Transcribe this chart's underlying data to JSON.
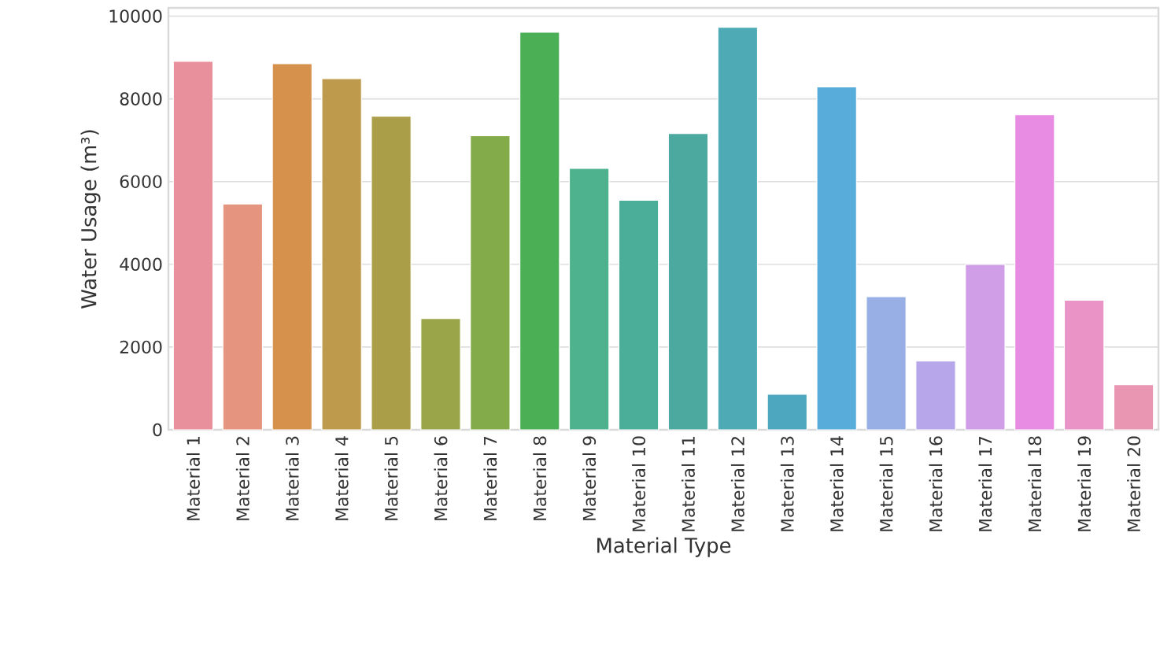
{
  "chart_data": {
    "type": "bar",
    "xlabel": "Material Type",
    "ylabel": "Water Usage (m³)",
    "categories": [
      "Material 1",
      "Material 2",
      "Material 3",
      "Material 4",
      "Material 5",
      "Material 6",
      "Material 7",
      "Material 8",
      "Material 9",
      "Material 10",
      "Material 11",
      "Material 12",
      "Material 13",
      "Material 14",
      "Material 15",
      "Material 16",
      "Material 17",
      "Material 18",
      "Material 19",
      "Material 20"
    ],
    "values": [
      8910,
      5460,
      8850,
      8490,
      7580,
      2690,
      7110,
      9610,
      6320,
      5550,
      7160,
      9730,
      860,
      8290,
      3220,
      1660,
      4000,
      7620,
      3130,
      1090
    ],
    "colors": [
      "#e8919c",
      "#e5947f",
      "#d6924d",
      "#be9a4c",
      "#ab9e48",
      "#9aa449",
      "#83ab4a",
      "#4aaf55",
      "#4db28d",
      "#4bae98",
      "#4ba99f",
      "#4eabb5",
      "#4da7bf",
      "#57acd9",
      "#97afe5",
      "#b7a7ea",
      "#cf9ee6",
      "#e78be3",
      "#e993c6",
      "#e996b3"
    ],
    "ylim": [
      0,
      10200
    ],
    "yticks": [
      0,
      2000,
      4000,
      6000,
      8000,
      10000
    ],
    "grid": "y"
  }
}
